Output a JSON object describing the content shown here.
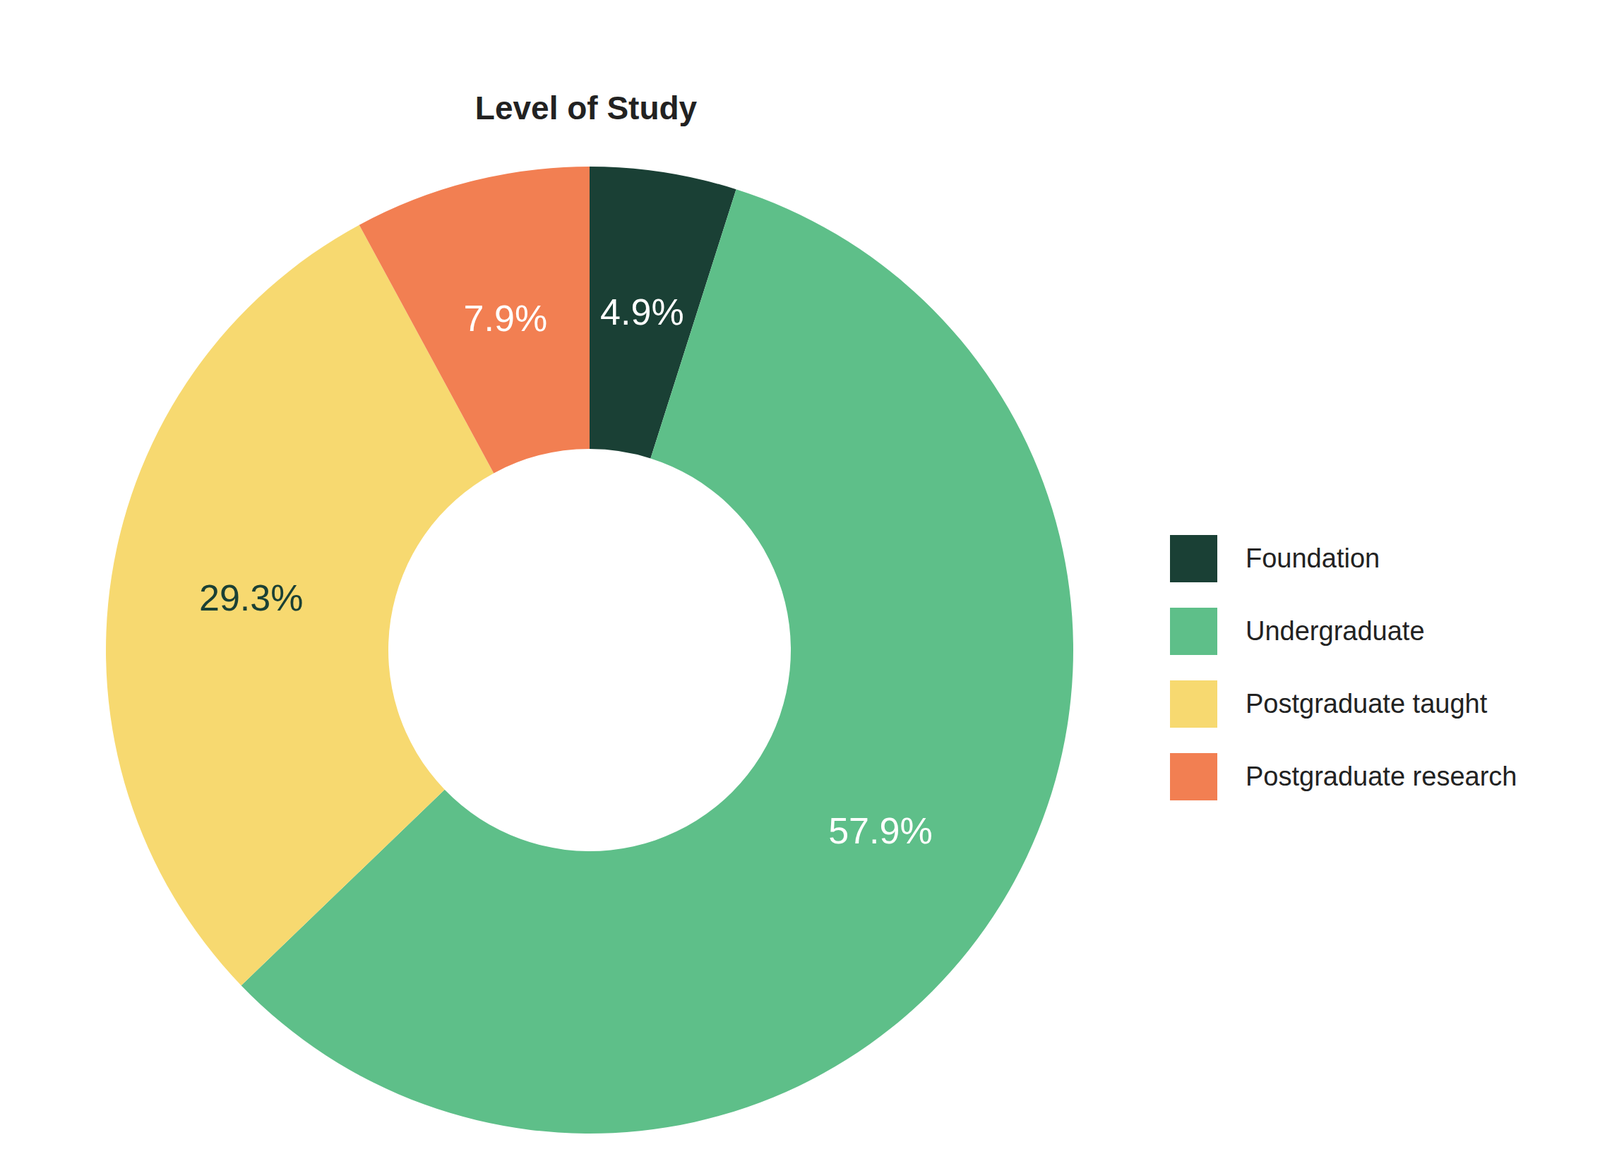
{
  "chart_data": {
    "type": "pie",
    "title": "Level of Study",
    "categories": [
      "Foundation",
      "Undergraduate",
      "Postgraduate taught",
      "Postgraduate research"
    ],
    "values": [
      4.9,
      57.9,
      29.3,
      7.9
    ],
    "value_labels": [
      "4.9%",
      "57.9%",
      "29.3%",
      "7.9%"
    ],
    "colors": [
      "#1a4035",
      "#5ebf89",
      "#f7d970",
      "#f27f52"
    ],
    "data_labels": true,
    "legend": "right"
  }
}
